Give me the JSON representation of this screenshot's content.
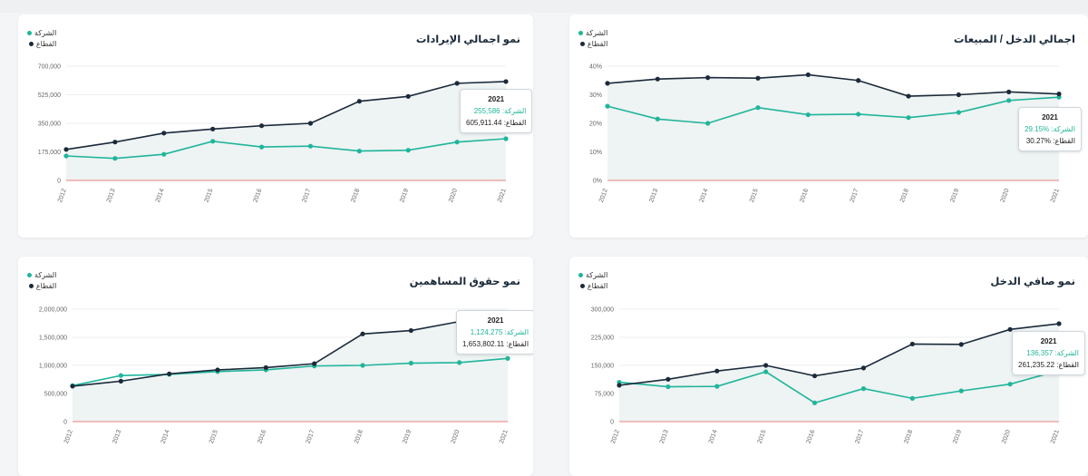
{
  "legend": {
    "company": "الشركة",
    "sector": "القطاع"
  },
  "colors": {
    "company": "#1fb59b",
    "sector": "#1b2a3a",
    "zero_line": "#e88080",
    "area_fill": "#eef3f3"
  },
  "chart_data": [
    {
      "id": "revenue",
      "type": "line",
      "title": "نمو اجمالي الإيرادات",
      "x": [
        "2012",
        "2013",
        "2014",
        "2015",
        "2016",
        "2017",
        "2018",
        "2019",
        "2020",
        "2021"
      ],
      "ylim": [
        0,
        700000
      ],
      "yticks": [
        "0",
        "175,000",
        "350,000",
        "525,000",
        "700,000"
      ],
      "yticks_values": [
        0,
        175000,
        350000,
        525000,
        700000
      ],
      "series": [
        {
          "name": "الشركة",
          "values": [
            150000,
            135000,
            160000,
            240000,
            205000,
            210000,
            180000,
            185000,
            235000,
            255586
          ]
        },
        {
          "name": "القطاع",
          "values": [
            190000,
            235000,
            290000,
            315000,
            335000,
            350000,
            485000,
            515000,
            595000,
            605911
          ]
        }
      ],
      "tooltip": {
        "year": "2021",
        "company_label": "الشركة:",
        "company_value": "255,586",
        "sector_label": "القطاع:",
        "sector_value": "605,911.44"
      }
    },
    {
      "id": "income-sales",
      "type": "line",
      "title": "اجمالي الدخل / المبيعات",
      "x": [
        "2012",
        "2013",
        "2014",
        "2015",
        "2016",
        "2017",
        "2018",
        "2019",
        "2020",
        "2021"
      ],
      "ylim": [
        0,
        40
      ],
      "yticks": [
        "0%",
        "10%",
        "20%",
        "30%",
        "40%"
      ],
      "yticks_values": [
        0,
        10,
        20,
        30,
        40
      ],
      "series": [
        {
          "name": "الشركة",
          "values": [
            26,
            21.5,
            20,
            25.5,
            23,
            23.2,
            22,
            23.8,
            28,
            29.15
          ]
        },
        {
          "name": "القطاع",
          "values": [
            34,
            35.5,
            36,
            35.8,
            37,
            35,
            29.5,
            30,
            31,
            30.27
          ]
        }
      ],
      "tooltip": {
        "year": "2021",
        "company_label": "الشركة:",
        "company_value": "%29.15",
        "sector_label": "القطاع:",
        "sector_value": "%30.27"
      }
    },
    {
      "id": "equity",
      "type": "line",
      "title": "نمو حقوق المساهمين",
      "x": [
        "2012",
        "2013",
        "2014",
        "2015",
        "2016",
        "2017",
        "2018",
        "2019",
        "2020",
        "2021"
      ],
      "ylim": [
        0,
        2000000
      ],
      "yticks": [
        "0",
        "500,000",
        "1,000,000",
        "1,500,000",
        "2,000,000"
      ],
      "yticks_values": [
        0,
        500000,
        1000000,
        1500000,
        2000000
      ],
      "series": [
        {
          "name": "الشركة",
          "values": [
            640000,
            820000,
            840000,
            890000,
            920000,
            990000,
            1000000,
            1040000,
            1050000,
            1124275
          ]
        },
        {
          "name": "القطاع",
          "values": [
            630000,
            720000,
            850000,
            920000,
            960000,
            1030000,
            1560000,
            1620000,
            1780000,
            1653802
          ]
        }
      ],
      "tooltip": {
        "year": "2021",
        "company_label": "الشركة:",
        "company_value": "1,124,275",
        "sector_label": "القطاع:",
        "sector_value": "1,653,802.11"
      }
    },
    {
      "id": "net-income",
      "type": "line",
      "title": "نمو صافي الدخل",
      "x": [
        "2012",
        "2013",
        "2014",
        "2015",
        "2016",
        "2017",
        "2018",
        "2019",
        "2020",
        "2021"
      ],
      "ylim": [
        0,
        300000
      ],
      "yticks": [
        "0",
        "75,000",
        "150,000",
        "225,000",
        "300,000"
      ],
      "yticks_values": [
        0,
        75000,
        150000,
        225000,
        300000
      ],
      "series": [
        {
          "name": "الشركة",
          "values": [
            105000,
            93000,
            94000,
            133000,
            50000,
            88000,
            62000,
            82000,
            100000,
            136357
          ]
        },
        {
          "name": "القطاع",
          "values": [
            97000,
            113000,
            135000,
            150000,
            122000,
            143000,
            207000,
            206000,
            246000,
            261235
          ]
        }
      ],
      "tooltip": {
        "year": "2021",
        "company_label": "الشركة:",
        "company_value": "136,357",
        "sector_label": "القطاع:",
        "sector_value": "261,235.22"
      }
    }
  ]
}
